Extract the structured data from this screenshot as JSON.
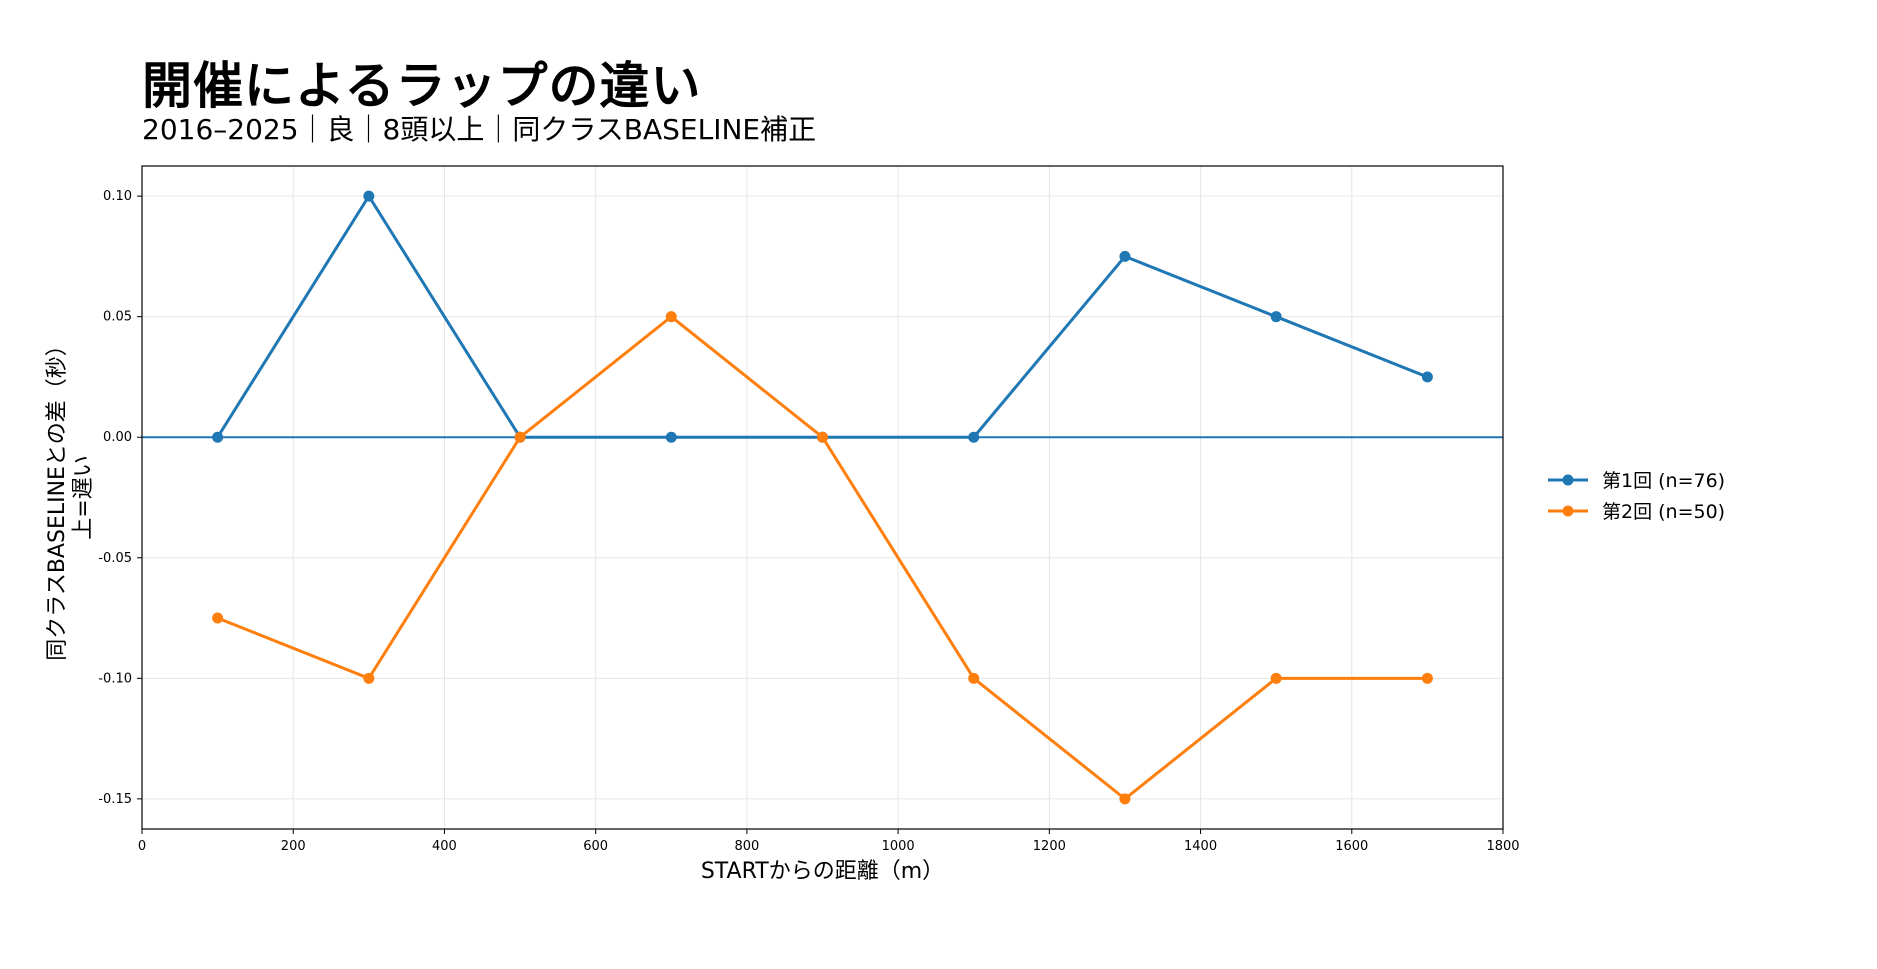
{
  "chart_data": {
    "type": "line",
    "title": "開催によるラップの違い",
    "subtitle": "2016–2025｜良｜8頭以上｜同クラスBASELINE補正",
    "xlabel": "STARTからの距離（m）",
    "ylabel": "同クラスBASELINEとの差（秒）",
    "ylabel2": "上=遅い",
    "xlim": [
      0,
      1800
    ],
    "ylim": [
      -0.1625,
      0.1125
    ],
    "xticks": [
      0,
      200,
      400,
      600,
      800,
      1000,
      1200,
      1400,
      1600,
      1800
    ],
    "yticks": [
      0.1,
      0.05,
      0.0,
      -0.05,
      -0.1,
      -0.15
    ],
    "ytick_labels": [
      "0.10",
      "0.05",
      "0.00",
      "-0.05",
      "-0.10",
      "-0.15"
    ],
    "grid": true,
    "zero_line": true,
    "legend_position": "right-outside",
    "x": [
      100,
      300,
      500,
      700,
      900,
      1100,
      1300,
      1500,
      1700
    ],
    "series": [
      {
        "name": "第1回 (n=76)",
        "color": "#1f77b4",
        "values": [
          0.0,
          0.1,
          0.0,
          0.0,
          0.0,
          0.0,
          0.075,
          0.05,
          0.025
        ]
      },
      {
        "name": "第2回 (n=50)",
        "color": "#ff7f0e",
        "values": [
          -0.075,
          -0.1,
          0.0,
          0.05,
          0.0,
          -0.1,
          -0.15,
          -0.1,
          -0.1
        ]
      }
    ]
  }
}
